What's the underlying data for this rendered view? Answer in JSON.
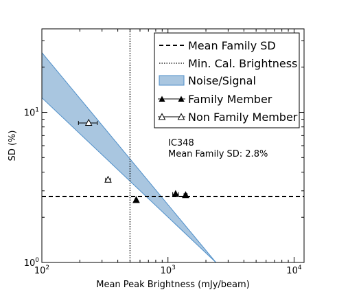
{
  "chart_data": {
    "type": "scatter",
    "xscale": "log",
    "yscale": "log",
    "xlim": [
      100,
      12000
    ],
    "ylim": [
      1.0,
      36
    ],
    "xlabel": "Mean Peak Brightness (mJy/beam)",
    "ylabel": "SD (%)",
    "x_ticks": [
      {
        "value": 100,
        "base": "10",
        "exp": "2"
      },
      {
        "value": 1000,
        "base": "10",
        "exp": "3"
      },
      {
        "value": 10000,
        "base": "10",
        "exp": "4"
      }
    ],
    "y_ticks": [
      {
        "value": 1,
        "base": "10",
        "exp": "0"
      },
      {
        "value": 10,
        "base": "10",
        "exp": "1"
      }
    ],
    "mean_family_sd": 2.75,
    "min_cal_brightness": 500,
    "noise_band": {
      "lower": [
        [
          100,
          12.5
        ],
        [
          2400,
          1.0
        ]
      ],
      "upper": [
        [
          100,
          25
        ],
        [
          2400,
          1.0
        ],
        [
          4800,
          1.0
        ]
      ]
    },
    "series": [
      {
        "name": "Family Member",
        "marker": "filled-triangle",
        "points": [
          {
            "x": 560,
            "y": 2.6,
            "xerr": 10
          },
          {
            "x": 1150,
            "y": 2.85,
            "xerr": 60
          },
          {
            "x": 1380,
            "y": 2.8,
            "xerr": 40
          }
        ]
      },
      {
        "name": "Non Family Member",
        "marker": "open-triangle",
        "points": [
          {
            "x": 235,
            "y": 8.5,
            "xerr": 40
          },
          {
            "x": 335,
            "y": 3.55,
            "xerr": 15
          }
        ]
      }
    ],
    "legend": {
      "placement": "top-right",
      "entries": [
        {
          "label": "Mean Family SD",
          "style": "dashed-line"
        },
        {
          "label": "Min. Cal. Brightness",
          "style": "dotted-line"
        },
        {
          "label": "Noise/Signal",
          "style": "band"
        },
        {
          "label": "Family Member",
          "style": "filled-triangle"
        },
        {
          "label": "Non Family Member",
          "style": "open-triangle"
        }
      ]
    },
    "annotation": {
      "line1": "IC348",
      "line2": "Mean Family SD: 2.8%"
    },
    "colors": {
      "band_fill": "#a9c6e0",
      "band_edge": "#4f8fc9",
      "marker": "#000000"
    }
  }
}
